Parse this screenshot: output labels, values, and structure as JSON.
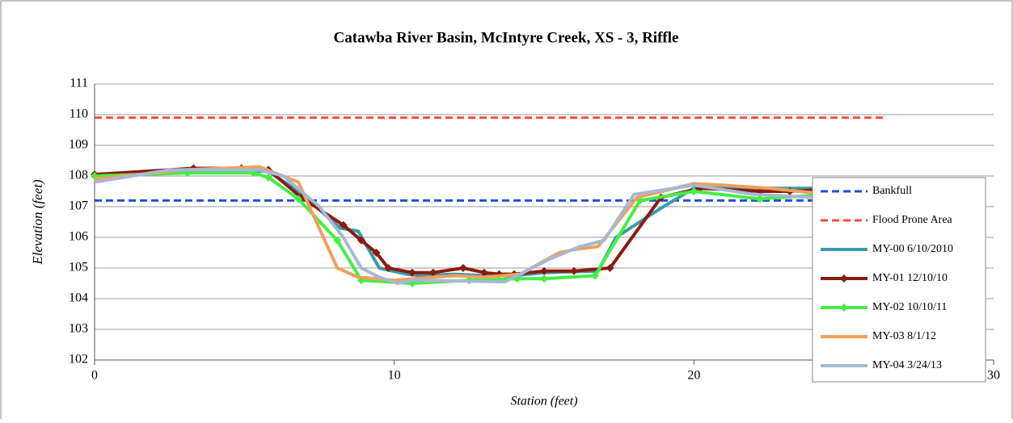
{
  "chart_data": {
    "type": "line",
    "title": "Catawba River Basin, McIntyre Creek, XS - 3, Riffle",
    "x_label": "Station (feet)",
    "y_label": "Elevation (feet)",
    "xlim": [
      0,
      30
    ],
    "xticks": [
      0,
      10,
      20,
      30
    ],
    "ylim": [
      102,
      111
    ],
    "yticks": [
      102,
      103,
      104,
      105,
      106,
      107,
      108,
      109,
      110,
      111
    ],
    "grid": true,
    "legend": "right",
    "series": [
      {
        "name": "Bankfull",
        "color": "#1f4fe0",
        "dash": true,
        "x": [
          0,
          26.35
        ],
        "values": [
          107.2,
          107.2
        ]
      },
      {
        "name": "Flood Prone Area",
        "color": "#ff4a3a",
        "dash": true,
        "x": [
          0,
          26.35
        ],
        "values": [
          109.9,
          109.9
        ]
      },
      {
        "name": "MY-00 6/10/2010",
        "color": "#3a9aaa",
        "x": [
          0,
          3,
          5.8,
          6.8,
          8.2,
          8.8,
          9.5,
          10.4,
          10.9,
          12,
          13,
          14,
          15,
          16.8,
          17.4,
          18.9,
          20,
          21,
          22,
          24.5
        ],
        "values": [
          107.9,
          108.2,
          108.15,
          107.5,
          106.3,
          106.2,
          105,
          104.8,
          104.75,
          104.8,
          104.75,
          104.75,
          104.85,
          104.9,
          106.0,
          106.95,
          107.6,
          107.65,
          107.6,
          107.6
        ]
      },
      {
        "name": "MY-01 12/10/10",
        "color": "#8b1a10",
        "marker": "diamond",
        "x": [
          0,
          3.3,
          4.9,
          5.8,
          6.9,
          8.3,
          8.9,
          9.4,
          9.8,
          10.6,
          11.3,
          12.3,
          13,
          13.5,
          14,
          15,
          16,
          17.2,
          18.9,
          20.2,
          22.2,
          23.2,
          24.2
        ],
        "values": [
          108.05,
          108.25,
          108.25,
          108.2,
          107.3,
          106.4,
          105.9,
          105.5,
          105.0,
          104.85,
          104.85,
          105.0,
          104.85,
          104.8,
          104.8,
          104.9,
          104.9,
          105.0,
          107.3,
          107.6,
          107.5,
          107.5,
          107.55
        ]
      },
      {
        "name": "MY-02 10/10/11",
        "color": "#44ee44",
        "marker": "diamond",
        "x": [
          0,
          3.1,
          5.3,
          5.8,
          6.8,
          8.1,
          8.9,
          10.6,
          12.5,
          14.1,
          15,
          16.7,
          18.2,
          20,
          22.2,
          24.4
        ],
        "values": [
          108.0,
          108.1,
          108.1,
          107.95,
          107.25,
          105.9,
          104.6,
          104.5,
          104.6,
          104.65,
          104.65,
          104.75,
          107.2,
          107.5,
          107.25,
          107.4
        ]
      },
      {
        "name": "MY-03 8/1/12",
        "color": "#f0a05a",
        "x": [
          0,
          3,
          5.5,
          6.8,
          8.1,
          8.8,
          10,
          12,
          13,
          14.2,
          15.5,
          16,
          16.8,
          18.1,
          20,
          21,
          22.5,
          24
        ],
        "values": [
          107.9,
          108.2,
          108.3,
          107.8,
          105.0,
          104.7,
          104.6,
          104.75,
          104.7,
          104.8,
          105.5,
          105.6,
          105.7,
          107.3,
          107.75,
          107.7,
          107.6,
          107.45
        ]
      },
      {
        "name": "MY-04 3/24/13",
        "color": "#a6b8d4",
        "x": [
          0,
          2.5,
          5.5,
          6.3,
          7.5,
          8.3,
          8.9,
          9.5,
          10.1,
          10.6,
          12,
          13.7,
          14.3,
          15.2,
          16.2,
          17,
          18,
          19,
          20,
          22,
          24,
          24.5
        ],
        "values": [
          107.8,
          108.2,
          108.2,
          108.0,
          107.0,
          106.0,
          105.0,
          104.7,
          104.5,
          104.6,
          104.58,
          104.55,
          104.85,
          105.3,
          105.7,
          105.9,
          107.4,
          107.55,
          107.7,
          107.4,
          107.3,
          107.35
        ]
      }
    ]
  }
}
